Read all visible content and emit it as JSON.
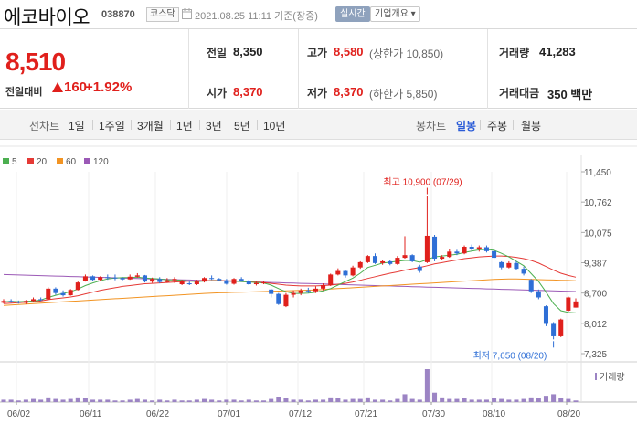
{
  "header": {
    "name": "에코바이오",
    "code": "038870",
    "market": "코스닥",
    "timestamp": "2021.08.25 11:11 기준(장중)",
    "realtime_label": "실시간",
    "company_info_label": "기업개요 ▾"
  },
  "summary": {
    "price": "8,510",
    "change_label": "전일대비",
    "change_value": "160",
    "change_pct": "+1.92%",
    "prev_close_label": "전일",
    "prev_close": "8,350",
    "high_label": "고가",
    "high": "8,580",
    "upper_limit": "(상한가 10,850)",
    "volume_label": "거래량",
    "volume": "41,283",
    "open_label": "시가",
    "open": "8,370",
    "low_label": "저가",
    "low": "8,370",
    "lower_limit": "(하한가 5,850)",
    "amount_label": "거래대금",
    "amount": "350 백만"
  },
  "tabs": {
    "line_label": "선차트",
    "line": [
      "1일",
      "1주일",
      "3개월",
      "1년",
      "3년",
      "5년",
      "10년"
    ],
    "candle_label": "봉차트",
    "candle": [
      "일봉",
      "주봉",
      "월봉"
    ],
    "active_candle": "일봉"
  },
  "legend": [
    {
      "label": "5",
      "color": "#4caf50"
    },
    {
      "label": "20",
      "color": "#e53935"
    },
    {
      "label": "60",
      "color": "#f29423"
    },
    {
      "label": "120",
      "color": "#9b59b6"
    }
  ],
  "volume_legend": "거래량",
  "chart_data": {
    "type": "candlestick",
    "y_ticks": [
      "11,450",
      "10,762",
      "10,075",
      "9,387",
      "8,700",
      "8,012",
      "7,325"
    ],
    "x_ticks": [
      "06/02",
      "06/11",
      "06/22",
      "07/01",
      "07/12",
      "07/21",
      "07/30",
      "08/10",
      "08/20"
    ],
    "ylim": [
      7325,
      11450
    ],
    "annotations": {
      "high": "최고 10,900 (07/29)",
      "low": "최저 7,650 (08/20)"
    },
    "colors": {
      "up": "#e0201c",
      "down": "#2f6fd6",
      "volume": "#9c84c4"
    },
    "candles": [
      [
        8480,
        8560,
        8460,
        8520
      ],
      [
        8520,
        8560,
        8480,
        8500
      ],
      [
        8500,
        8530,
        8460,
        8480
      ],
      [
        8480,
        8540,
        8450,
        8520
      ],
      [
        8520,
        8600,
        8500,
        8560
      ],
      [
        8560,
        8600,
        8520,
        8540
      ],
      [
        8560,
        8830,
        8540,
        8800
      ],
      [
        8800,
        8830,
        8660,
        8700
      ],
      [
        8700,
        8760,
        8620,
        8650
      ],
      [
        8650,
        8790,
        8640,
        8770
      ],
      [
        8770,
        8960,
        8760,
        8940
      ],
      [
        8980,
        9120,
        8960,
        9080
      ],
      [
        9080,
        9100,
        8980,
        9000
      ],
      [
        9000,
        9080,
        8980,
        9060
      ],
      [
        9060,
        9120,
        9000,
        9050
      ],
      [
        9050,
        9120,
        8990,
        9040
      ],
      [
        9040,
        9060,
        8990,
        9010
      ],
      [
        9010,
        9120,
        9000,
        9070
      ],
      [
        9070,
        9150,
        9050,
        9100
      ],
      [
        9100,
        9110,
        8940,
        8960
      ],
      [
        8960,
        9050,
        8930,
        9020
      ],
      [
        9020,
        9060,
        8920,
        8950
      ],
      [
        8950,
        9040,
        8930,
        8990
      ],
      [
        8990,
        9060,
        8930,
        9020
      ],
      [
        8900,
        9000,
        8880,
        8960
      ],
      [
        8920,
        8960,
        8880,
        8900
      ],
      [
        8900,
        9000,
        8880,
        8960
      ],
      [
        8960,
        9060,
        8940,
        9040
      ],
      [
        9040,
        9100,
        9000,
        9020
      ],
      [
        9020,
        9040,
        8980,
        8990
      ],
      [
        8990,
        9020,
        8890,
        8910
      ],
      [
        8910,
        9040,
        8890,
        9020
      ],
      [
        9020,
        9060,
        8960,
        8980
      ],
      [
        8980,
        9000,
        8880,
        8900
      ],
      [
        8900,
        8960,
        8870,
        8930
      ],
      [
        8930,
        8970,
        8900,
        8940
      ],
      [
        8780,
        8800,
        8600,
        8680
      ],
      [
        8680,
        8700,
        8430,
        8450
      ],
      [
        8400,
        8700,
        8380,
        8660
      ],
      [
        8660,
        8760,
        8600,
        8700
      ],
      [
        8700,
        8800,
        8650,
        8760
      ],
      [
        8760,
        8820,
        8700,
        8740
      ],
      [
        8740,
        8850,
        8700,
        8800
      ],
      [
        8800,
        8920,
        8760,
        8880
      ],
      [
        8880,
        9140,
        8860,
        9120
      ],
      [
        9120,
        9260,
        9100,
        9200
      ],
      [
        9200,
        9230,
        9050,
        9100
      ],
      [
        9100,
        9320,
        9080,
        9280
      ],
      [
        9280,
        9420,
        9250,
        9400
      ],
      [
        9400,
        9560,
        9380,
        9540
      ],
      [
        9540,
        9600,
        9360,
        9380
      ],
      [
        9380,
        9460,
        9340,
        9420
      ],
      [
        9420,
        9460,
        9330,
        9360
      ],
      [
        9360,
        9540,
        9340,
        9500
      ],
      [
        9500,
        9990,
        9480,
        9560
      ],
      [
        9560,
        9580,
        9400,
        9420
      ],
      [
        9300,
        9340,
        9160,
        9200
      ],
      [
        9400,
        10900,
        9380,
        10000
      ],
      [
        9980,
        10020,
        9420,
        9480
      ],
      [
        9480,
        9560,
        9440,
        9520
      ],
      [
        9520,
        9700,
        9500,
        9640
      ],
      [
        9640,
        9680,
        9560,
        9600
      ],
      [
        9600,
        9780,
        9580,
        9750
      ],
      [
        9750,
        9800,
        9660,
        9700
      ],
      [
        9700,
        9780,
        9640,
        9740
      ],
      [
        9740,
        9780,
        9620,
        9650
      ],
      [
        9650,
        9680,
        9470,
        9500
      ],
      [
        9400,
        9420,
        9240,
        9280
      ],
      [
        9280,
        9420,
        9260,
        9380
      ],
      [
        9380,
        9420,
        9230,
        9250
      ],
      [
        9250,
        9300,
        9100,
        9140
      ],
      [
        9000,
        9020,
        8700,
        8740
      ],
      [
        8740,
        8780,
        8560,
        8600
      ],
      [
        8400,
        8420,
        7950,
        8000
      ],
      [
        8000,
        8040,
        7650,
        7720
      ],
      [
        7720,
        8120,
        7700,
        8100
      ],
      [
        8300,
        8620,
        8280,
        8600
      ],
      [
        8370,
        8580,
        8370,
        8510
      ]
    ],
    "volumes": [
      3,
      3,
      2,
      3,
      4,
      3,
      6,
      4,
      3,
      4,
      6,
      5,
      3,
      3,
      3,
      2,
      2,
      3,
      4,
      3,
      2,
      3,
      2,
      3,
      2,
      2,
      3,
      4,
      3,
      2,
      3,
      3,
      2,
      3,
      2,
      2,
      4,
      7,
      5,
      3,
      3,
      2,
      3,
      3,
      6,
      5,
      3,
      4,
      4,
      6,
      3,
      3,
      2,
      4,
      10,
      4,
      3,
      42,
      12,
      6,
      4,
      4,
      5,
      3,
      3,
      3,
      5,
      4,
      3,
      3,
      4,
      6,
      5,
      8,
      10,
      5,
      4,
      2
    ],
    "ma5": [
      8500,
      8510,
      8505,
      8510,
      8520,
      8540,
      8600,
      8650,
      8690,
      8730,
      8790,
      8870,
      8930,
      8980,
      9020,
      9040,
      9050,
      9050,
      9060,
      9040,
      9030,
      9020,
      9000,
      9000,
      8990,
      8970,
      8960,
      8970,
      8980,
      8980,
      8970,
      8970,
      8960,
      8950,
      8940,
      8930,
      8880,
      8800,
      8730,
      8690,
      8690,
      8700,
      8720,
      8750,
      8800,
      8880,
      8960,
      9040,
      9150,
      9280,
      9330,
      9380,
      9400,
      9420,
      9440,
      9440,
      9400,
      9460,
      9520,
      9540,
      9560,
      9580,
      9620,
      9650,
      9680,
      9690,
      9670,
      9600,
      9520,
      9420,
      9320,
      9140,
      8960,
      8720,
      8460,
      8300,
      8260,
      8250
    ],
    "ma20": [
      8460,
      8470,
      8480,
      8490,
      8500,
      8520,
      8550,
      8570,
      8590,
      8610,
      8640,
      8680,
      8720,
      8760,
      8790,
      8820,
      8850,
      8870,
      8890,
      8910,
      8920,
      8930,
      8940,
      8950,
      8960,
      8970,
      8975,
      8980,
      8985,
      8985,
      8980,
      8975,
      8970,
      8960,
      8950,
      8940,
      8920,
      8900,
      8880,
      8870,
      8860,
      8860,
      8860,
      8870,
      8880,
      8900,
      8920,
      8950,
      8990,
      9030,
      9070,
      9110,
      9150,
      9180,
      9220,
      9250,
      9280,
      9320,
      9360,
      9390,
      9420,
      9450,
      9480,
      9500,
      9520,
      9530,
      9540,
      9540,
      9530,
      9510,
      9480,
      9440,
      9380,
      9300,
      9220,
      9150,
      9100,
      9060
    ],
    "ma60": [
      8420,
      8430,
      8440,
      8450,
      8460,
      8470,
      8480,
      8490,
      8500,
      8510,
      8520,
      8530,
      8540,
      8550,
      8560,
      8570,
      8580,
      8590,
      8600,
      8610,
      8620,
      8630,
      8640,
      8650,
      8660,
      8670,
      8680,
      8690,
      8700,
      8705,
      8710,
      8715,
      8720,
      8725,
      8730,
      8735,
      8740,
      8745,
      8750,
      8755,
      8760,
      8765,
      8770,
      8780,
      8790,
      8800,
      8810,
      8820,
      8830,
      8840,
      8850,
      8860,
      8870,
      8880,
      8890,
      8900,
      8910,
      8920,
      8930,
      8940,
      8950,
      8960,
      8970,
      8980,
      8990,
      9000,
      9010,
      9015,
      9020,
      9020,
      9015,
      9010,
      9005,
      9000,
      8995,
      8990,
      8985,
      8980
    ],
    "ma120": [
      9120,
      9115,
      9110,
      9105,
      9100,
      9095,
      9090,
      9085,
      9080,
      9075,
      9070,
      9065,
      9060,
      9055,
      9050,
      9045,
      9040,
      9035,
      9030,
      9025,
      9020,
      9015,
      9010,
      9005,
      9000,
      8995,
      8990,
      8985,
      8980,
      8975,
      8970,
      8965,
      8960,
      8955,
      8950,
      8945,
      8940,
      8935,
      8930,
      8925,
      8920,
      8915,
      8910,
      8905,
      8900,
      8895,
      8890,
      8885,
      8880,
      8875,
      8870,
      8865,
      8860,
      8855,
      8850,
      8845,
      8840,
      8835,
      8830,
      8825,
      8820,
      8815,
      8810,
      8805,
      8800,
      8795,
      8790,
      8785,
      8780,
      8775,
      8770,
      8765,
      8760,
      8755,
      8750,
      8745,
      8740,
      8735
    ]
  }
}
